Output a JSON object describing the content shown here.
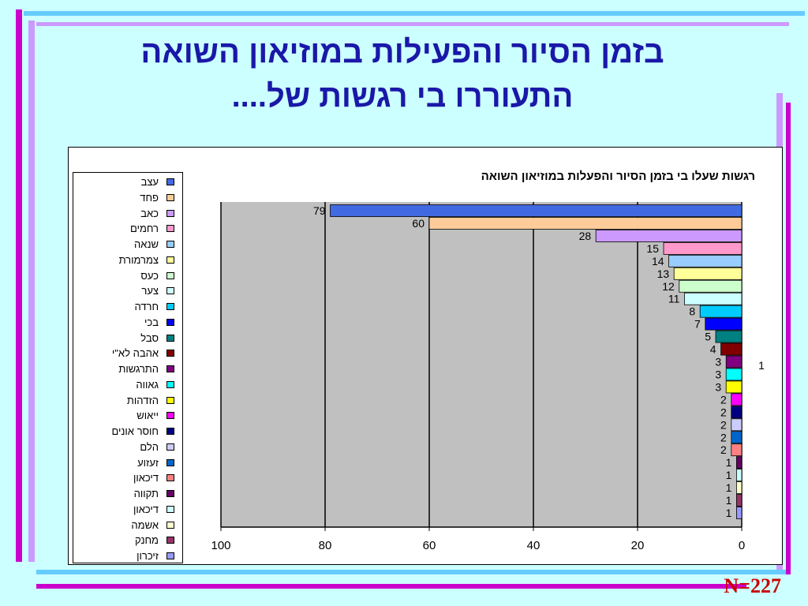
{
  "slide": {
    "title_line1": "בזמן הסיור והפעילות במוזיאון השואה",
    "title_line2": "התעוררו בי רגשות של....",
    "n_label": "N=227"
  },
  "colors": {
    "background": "#ccffff",
    "title": "#1a18a8",
    "plot_area": "#c0c0c0",
    "n_label": "#cc0000",
    "deco_magenta": "#cc00cc",
    "deco_cyan": "#66ccff"
  },
  "chart_data": {
    "type": "bar",
    "orientation": "horizontal",
    "title": "רגשות שעלו בי בזמן הסיור והפעלות במוזיאון השואה",
    "xlim": [
      0,
      100
    ],
    "x_direction": "reversed",
    "xticks": [
      100,
      80,
      60,
      40,
      20,
      0
    ],
    "grid": "vertical",
    "legend_position": "left",
    "stray_label": "1",
    "series": [
      {
        "name": "עצב",
        "value": 79,
        "color": "#4169e1"
      },
      {
        "name": "פחד",
        "value": 60,
        "color": "#ffcc99"
      },
      {
        "name": "כאב",
        "value": 28,
        "color": "#cc99ff"
      },
      {
        "name": "רחמים",
        "value": 15,
        "color": "#ff99cc"
      },
      {
        "name": "שנאה",
        "value": 14,
        "color": "#99ccff"
      },
      {
        "name": "צמרמורת",
        "value": 13,
        "color": "#ffff99"
      },
      {
        "name": "כעס",
        "value": 12,
        "color": "#ccffcc"
      },
      {
        "name": "צער",
        "value": 11,
        "color": "#ccffff"
      },
      {
        "name": "חרדה",
        "value": 8,
        "color": "#00ccff"
      },
      {
        "name": "בכי",
        "value": 7,
        "color": "#0000ff"
      },
      {
        "name": "סבל",
        "value": 5,
        "color": "#008080"
      },
      {
        "name": "אהבה לא\"י",
        "value": 4,
        "color": "#800000"
      },
      {
        "name": "התרגשות",
        "value": 3,
        "color": "#800080"
      },
      {
        "name": "גאווה",
        "value": 3,
        "color": "#00ffff"
      },
      {
        "name": "הזדהות",
        "value": 3,
        "color": "#ffff00"
      },
      {
        "name": "ייאוש",
        "value": 2,
        "color": "#ff00ff"
      },
      {
        "name": "חוסר אונים",
        "value": 2,
        "color": "#000080"
      },
      {
        "name": "הלם",
        "value": 2,
        "color": "#ccccff"
      },
      {
        "name": "זעזוע",
        "value": 2,
        "color": "#0066cc"
      },
      {
        "name": "דיכאון",
        "value": 2,
        "color": "#ff8080"
      },
      {
        "name": "תקווה",
        "value": 1,
        "color": "#660066"
      },
      {
        "name": "דיכאון",
        "value": 1,
        "color": "#ccffff"
      },
      {
        "name": "אשמה",
        "value": 1,
        "color": "#ffffcc"
      },
      {
        "name": "מחנק",
        "value": 1,
        "color": "#993366"
      },
      {
        "name": "זיכרון",
        "value": 1,
        "color": "#9999ff"
      }
    ]
  }
}
